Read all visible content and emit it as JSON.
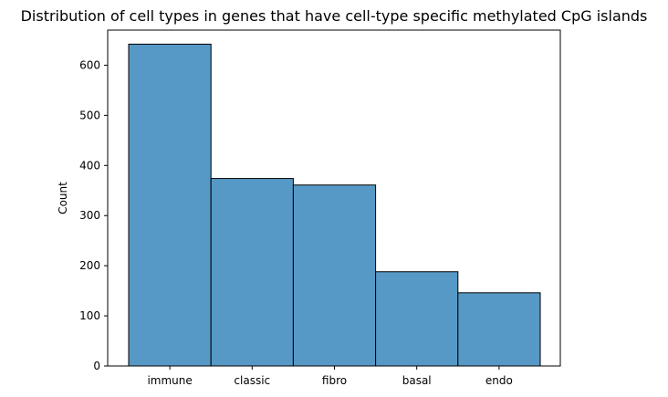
{
  "chart_data": {
    "type": "bar",
    "title": "Distribution of cell types in genes that have cell-type specific methylated CpG islands",
    "xlabel": "",
    "ylabel": "Count",
    "categories": [
      "immune",
      "classic",
      "fibro",
      "basal",
      "endo"
    ],
    "values": [
      642,
      374,
      361,
      188,
      146
    ],
    "ylim": [
      0,
      670
    ],
    "yticks": [
      0,
      100,
      200,
      300,
      400,
      500,
      600
    ],
    "grid": false,
    "legend": "none",
    "colors": {
      "bar_fill": "#5799c6",
      "bar_edge": "#000000",
      "axis": "#000000"
    }
  }
}
